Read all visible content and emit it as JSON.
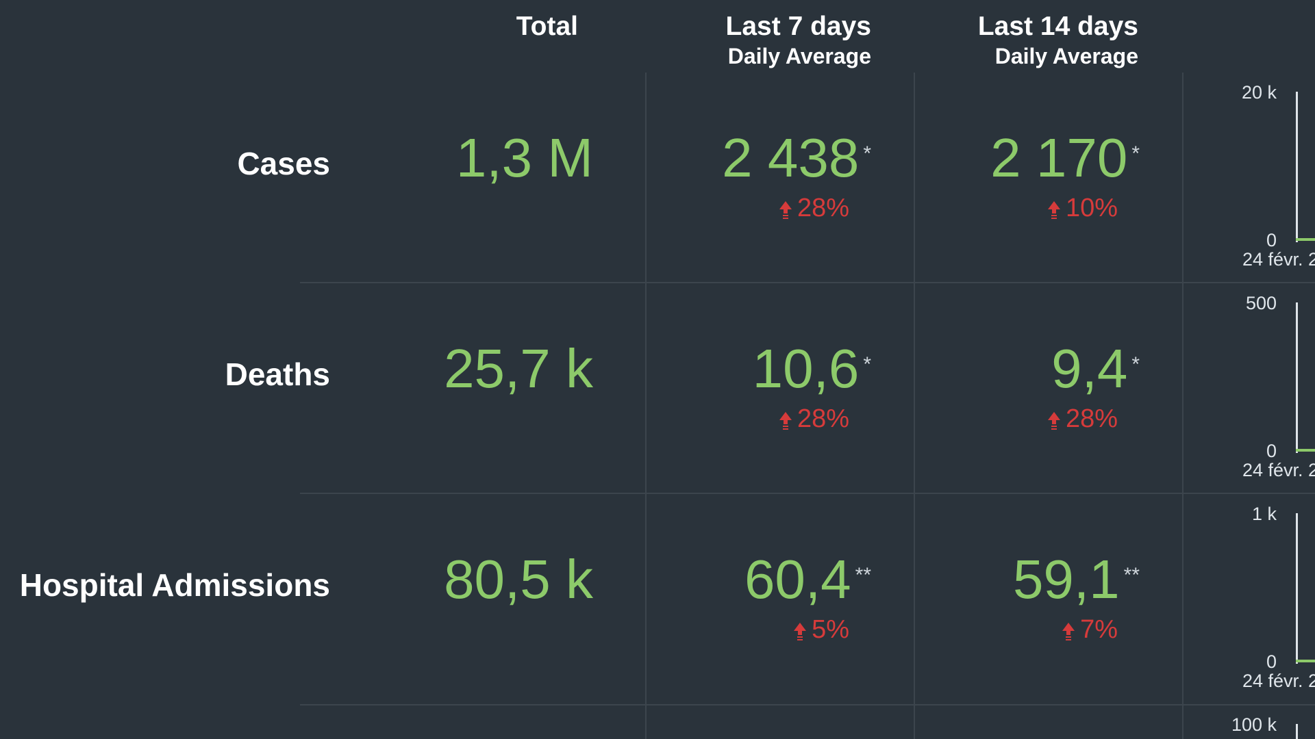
{
  "columns": {
    "total": "Total",
    "last7": {
      "title": "Last 7 days",
      "subtitle": "Daily Average"
    },
    "last14": {
      "title": "Last 14 days",
      "subtitle": "Daily Average"
    }
  },
  "rows": [
    {
      "label": "Cases",
      "total": "1,3 M",
      "last7": {
        "value": "2 438",
        "asterisk": "*",
        "change": "28%",
        "direction": "up"
      },
      "last14": {
        "value": "2 170",
        "asterisk": "*",
        "change": "10%",
        "direction": "up"
      },
      "sparkline": {
        "y_max": "20 k",
        "y_min": "0",
        "x_start": "24 févr. 2"
      }
    },
    {
      "label": "Deaths",
      "total": "25,7 k",
      "last7": {
        "value": "10,6",
        "asterisk": "*",
        "change": "28%",
        "direction": "up"
      },
      "last14": {
        "value": "9,4",
        "asterisk": "*",
        "change": "28%",
        "direction": "up"
      },
      "sparkline": {
        "y_max": "500",
        "y_min": "0",
        "x_start": "24 févr. 2"
      }
    },
    {
      "label": "Hospital Admissions",
      "total": "80,5 k",
      "last7": {
        "value": "60,4",
        "asterisk": "**",
        "change": "5%",
        "direction": "up"
      },
      "last14": {
        "value": "59,1",
        "asterisk": "**",
        "change": "7%",
        "direction": "up"
      },
      "sparkline": {
        "y_max": "1 k",
        "y_min": "0",
        "x_start": "24 févr. 2"
      }
    },
    {
      "sparkline": {
        "y_max": "100 k"
      }
    }
  ],
  "colors": {
    "background": "#2a333b",
    "value_green": "#8dca6a",
    "change_red": "#d63b3b",
    "grid": "#3c454d"
  }
}
